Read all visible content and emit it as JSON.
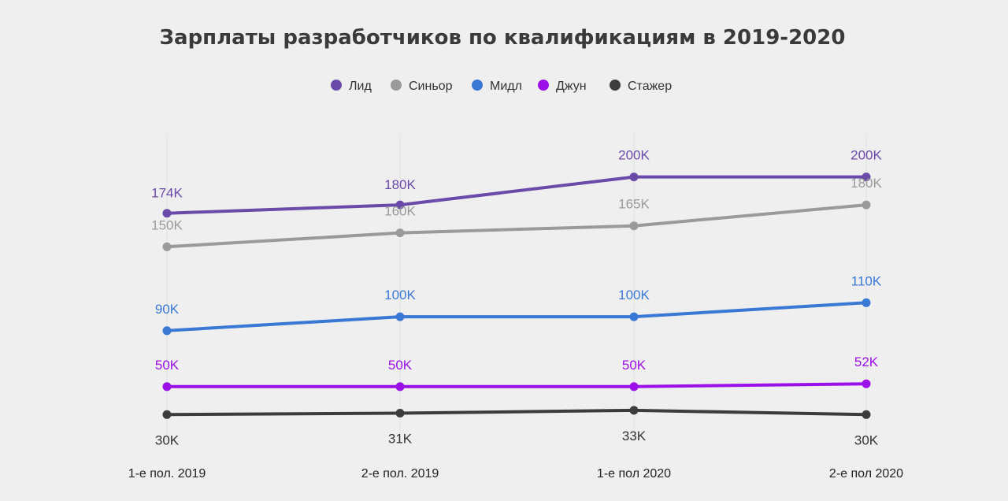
{
  "chart_data": {
    "type": "line",
    "title": "Зарплаты разработчиков по квалификациям в 2019-2020",
    "categories": [
      "1-е пол. 2019",
      "2-е пол. 2019",
      "1-е пол 2020",
      "2-е пол 2020"
    ],
    "legend_position": "top-center",
    "grid": false,
    "ylim": [
      20,
      215
    ],
    "series": [
      {
        "name": "Лид",
        "color": "#6a4aa8",
        "values": [
          174,
          180,
          200,
          200
        ],
        "labels": [
          "174K",
          "180K",
          "200K",
          "200K"
        ]
      },
      {
        "name": "Синьор",
        "color": "#9a9a9a",
        "values": [
          150,
          160,
          165,
          180
        ],
        "labels": [
          "150K",
          "160K",
          "165K",
          "180K"
        ]
      },
      {
        "name": "Мидл",
        "color": "#3a78d6",
        "values": [
          90,
          100,
          100,
          110
        ],
        "labels": [
          "90K",
          "100K",
          "100K",
          "110K"
        ]
      },
      {
        "name": "Джун",
        "color": "#9b10e8",
        "values": [
          50,
          50,
          50,
          52
        ],
        "labels": [
          "50K",
          "50K",
          "50K",
          "52K"
        ]
      },
      {
        "name": "Стажер",
        "color": "#3c3c3c",
        "values": [
          30,
          31,
          33,
          30
        ],
        "labels": [
          "30K",
          "31K",
          "33K",
          "30K"
        ]
      }
    ]
  }
}
